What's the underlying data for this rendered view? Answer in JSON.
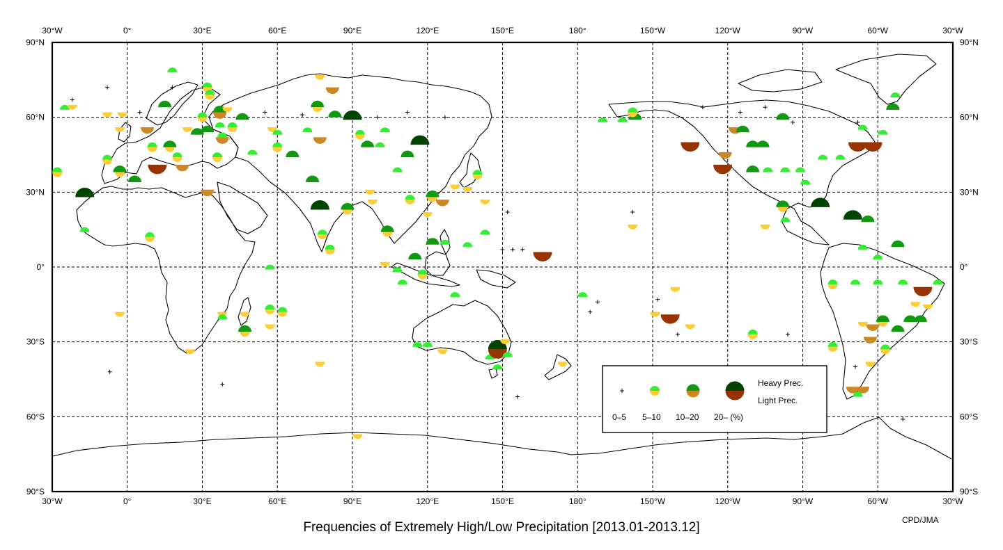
{
  "title": "Frequencies of Extremely High/Low Precipitation [2013.01-2013.12]",
  "credit": "CPD/JMA",
  "longitude_labels": [
    "30°W",
    "0°",
    "30°E",
    "60°E",
    "90°E",
    "120°E",
    "150°E",
    "180°",
    "150°W",
    "120°W",
    "90°W",
    "60°W",
    "30°W"
  ],
  "latitude_labels_left": [
    "90°N",
    "60°N",
    "30°N",
    "0°",
    "30°S",
    "60°S",
    "90°S"
  ],
  "latitude_labels_right": [
    "90°N",
    "60°N",
    "30°N",
    "0°",
    "30°S",
    "60°S",
    "90°S"
  ],
  "legend": {
    "heavy_label": "Heavy Prec.",
    "light_label": "Light Prec.",
    "classes": [
      "0–5",
      "5–10",
      "10–20",
      "20– (%)"
    ]
  },
  "colors": {
    "heavy": [
      "#000000",
      "#33ee33",
      "#119911",
      "#004400"
    ],
    "light": [
      "#000000",
      "#ffcc33",
      "#cc8822",
      "#993300"
    ],
    "land_outline": "#000000",
    "grid": "#000000"
  },
  "stations": [
    {
      "lon": -25,
      "lat": 63,
      "heavy": 1,
      "light": 0
    },
    {
      "lon": -22,
      "lat": 65,
      "heavy": 0,
      "light": 1
    },
    {
      "lon": -28,
      "lat": 38,
      "heavy": 1,
      "light": 1
    },
    {
      "lon": -17,
      "lat": 28,
      "heavy": 3,
      "light": 0
    },
    {
      "lon": -17,
      "lat": 14,
      "heavy": 1,
      "light": 0
    },
    {
      "lon": -3,
      "lat": 56,
      "heavy": 0,
      "light": 1
    },
    {
      "lon": -8,
      "lat": 62,
      "heavy": 0,
      "light": 1
    },
    {
      "lon": -2,
      "lat": 62,
      "heavy": 0,
      "light": 1
    },
    {
      "lon": -8,
      "lat": 43,
      "heavy": 1,
      "light": 1
    },
    {
      "lon": -3,
      "lat": 38,
      "heavy": 2,
      "light": 1
    },
    {
      "lon": 3,
      "lat": 34,
      "heavy": 2,
      "light": 0
    },
    {
      "lon": 8,
      "lat": 56,
      "heavy": 0,
      "light": 2
    },
    {
      "lon": 12,
      "lat": 41,
      "heavy": 0,
      "light": 3
    },
    {
      "lon": 10,
      "lat": 48,
      "heavy": 1,
      "light": 1
    },
    {
      "lon": 15,
      "lat": 64,
      "heavy": 2,
      "light": 0
    },
    {
      "lon": 17,
      "lat": 48,
      "heavy": 2,
      "light": 1
    },
    {
      "lon": 20,
      "lat": 44,
      "heavy": 1,
      "light": 1
    },
    {
      "lon": 22,
      "lat": 41,
      "heavy": 0,
      "light": 2
    },
    {
      "lon": 24,
      "lat": 56,
      "heavy": 0,
      "light": 1
    },
    {
      "lon": 28,
      "lat": 53,
      "heavy": 2,
      "light": 0
    },
    {
      "lon": 30,
      "lat": 60,
      "heavy": 1,
      "light": 1
    },
    {
      "lon": 32,
      "lat": 72,
      "heavy": 1,
      "light": 1
    },
    {
      "lon": 32,
      "lat": 54,
      "heavy": 2,
      "light": 0
    },
    {
      "lon": 37,
      "lat": 62,
      "heavy": 2,
      "light": 2
    },
    {
      "lon": 37,
      "lat": 56,
      "heavy": 1,
      "light": 0
    },
    {
      "lon": 38,
      "lat": 52,
      "heavy": 1,
      "light": 2
    },
    {
      "lon": 40,
      "lat": 64,
      "heavy": 0,
      "light": 1
    },
    {
      "lon": 32,
      "lat": 31,
      "heavy": 0,
      "light": 2
    },
    {
      "lon": 36,
      "lat": 44,
      "heavy": 1,
      "light": 1
    },
    {
      "lon": 33,
      "lat": 69,
      "heavy": 1,
      "light": 1
    },
    {
      "lon": 42,
      "lat": 56,
      "heavy": 1,
      "light": 1
    },
    {
      "lon": 46,
      "lat": 59,
      "heavy": 2,
      "light": 0
    },
    {
      "lon": 50,
      "lat": 45,
      "heavy": 1,
      "light": 0
    },
    {
      "lon": 58,
      "lat": 56,
      "heavy": 0,
      "light": 1
    },
    {
      "lon": 60,
      "lat": 53,
      "heavy": 1,
      "light": 0
    },
    {
      "lon": 60,
      "lat": 48,
      "heavy": 1,
      "light": 1
    },
    {
      "lon": 66,
      "lat": 44,
      "heavy": 2,
      "light": 0
    },
    {
      "lon": 72,
      "lat": 54,
      "heavy": 1,
      "light": 0
    },
    {
      "lon": 74,
      "lat": 34,
      "heavy": 2,
      "light": 0
    },
    {
      "lon": 77,
      "lat": 23,
      "heavy": 3,
      "light": 0
    },
    {
      "lon": 76,
      "lat": 64,
      "heavy": 2,
      "light": 1
    },
    {
      "lon": 77,
      "lat": 77,
      "heavy": 0,
      "light": 1
    },
    {
      "lon": 82,
      "lat": 72,
      "heavy": 0,
      "light": 2
    },
    {
      "lon": 77,
      "lat": 52,
      "heavy": 0,
      "light": 2
    },
    {
      "lon": 83,
      "lat": 60,
      "heavy": 2,
      "light": 0
    },
    {
      "lon": 88,
      "lat": 23,
      "heavy": 2,
      "light": 1
    },
    {
      "lon": 90,
      "lat": 59,
      "heavy": 3,
      "light": 0
    },
    {
      "lon": 93,
      "lat": 53,
      "heavy": 1,
      "light": 1
    },
    {
      "lon": 96,
      "lat": 48,
      "heavy": 2,
      "light": 0
    },
    {
      "lon": 101,
      "lat": 48,
      "heavy": 1,
      "light": 0
    },
    {
      "lon": 103,
      "lat": 54,
      "heavy": 1,
      "light": 0
    },
    {
      "lon": 108,
      "lat": 38,
      "heavy": 1,
      "light": 0
    },
    {
      "lon": 112,
      "lat": 44,
      "heavy": 2,
      "light": 0
    },
    {
      "lon": 117,
      "lat": 49,
      "heavy": 3,
      "light": 0
    },
    {
      "lon": 120,
      "lat": 22,
      "heavy": 0,
      "light": 1
    },
    {
      "lon": 122,
      "lat": 28,
      "heavy": 2,
      "light": 1
    },
    {
      "lon": 126,
      "lat": 27,
      "heavy": 0,
      "light": 2
    },
    {
      "lon": 131,
      "lat": 33,
      "heavy": 0,
      "light": 1
    },
    {
      "lon": 136,
      "lat": 32,
      "heavy": 0,
      "light": 1
    },
    {
      "lon": 140,
      "lat": 37,
      "heavy": 1,
      "light": 1
    },
    {
      "lon": 143,
      "lat": 27,
      "heavy": 0,
      "light": 1
    },
    {
      "lon": 143,
      "lat": 13,
      "heavy": 1,
      "light": 0
    },
    {
      "lon": 136,
      "lat": 8,
      "heavy": 1,
      "light": 0
    },
    {
      "lon": 122,
      "lat": 9,
      "heavy": 2,
      "light": 0
    },
    {
      "lon": 127,
      "lat": 9,
      "heavy": 1,
      "light": 0
    },
    {
      "lon": 118,
      "lat": -3,
      "heavy": 1,
      "light": 1
    },
    {
      "lon": 104,
      "lat": 14,
      "heavy": 2,
      "light": 1
    },
    {
      "lon": 103,
      "lat": 2,
      "heavy": 0,
      "light": 1
    },
    {
      "lon": 108,
      "lat": -2,
      "heavy": 1,
      "light": 0
    },
    {
      "lon": 110,
      "lat": -7,
      "heavy": 1,
      "light": 0
    },
    {
      "lon": 115,
      "lat": 3,
      "heavy": 2,
      "light": 0
    },
    {
      "lon": 98,
      "lat": 27,
      "heavy": 0,
      "light": 1
    },
    {
      "lon": 113,
      "lat": 27,
      "heavy": 1,
      "light": 1
    },
    {
      "lon": 78,
      "lat": 13,
      "heavy": 1,
      "light": 1
    },
    {
      "lon": 81,
      "lat": 7,
      "heavy": 1,
      "light": 1
    },
    {
      "lon": 97,
      "lat": 31,
      "heavy": 0,
      "light": 1
    },
    {
      "lon": 116,
      "lat": -32,
      "heavy": 1,
      "light": 0
    },
    {
      "lon": 120,
      "lat": -32,
      "heavy": 1,
      "light": 0
    },
    {
      "lon": 126,
      "lat": -33,
      "heavy": 0,
      "light": 1
    },
    {
      "lon": 145,
      "lat": -37,
      "heavy": 1,
      "light": 0
    },
    {
      "lon": 148,
      "lat": -33,
      "heavy": 3,
      "light": 3
    },
    {
      "lon": 151,
      "lat": -29,
      "heavy": 0,
      "light": 1
    },
    {
      "lon": 152,
      "lat": -36,
      "heavy": 1,
      "light": 0
    },
    {
      "lon": 148,
      "lat": -41,
      "heavy": 1,
      "light": 0
    },
    {
      "lon": 131,
      "lat": -12,
      "heavy": 1,
      "light": 0
    },
    {
      "lon": 166,
      "lat": 6,
      "heavy": 0,
      "light": 3
    },
    {
      "lon": 174,
      "lat": -38,
      "heavy": 0,
      "light": 1
    },
    {
      "lon": -178,
      "lat": -12,
      "heavy": 1,
      "light": 0
    },
    {
      "lon": -158,
      "lat": 17,
      "heavy": 0,
      "light": 1
    },
    {
      "lon": -157,
      "lat": 59,
      "heavy": 2,
      "light": 0
    },
    {
      "lon": -162,
      "lat": 58,
      "heavy": 1,
      "light": 0
    },
    {
      "lon": -170,
      "lat": 58,
      "heavy": 1,
      "light": 0
    },
    {
      "lon": -158,
      "lat": 62,
      "heavy": 1,
      "light": 1
    },
    {
      "lon": -141,
      "lat": -8,
      "heavy": 0,
      "light": 1
    },
    {
      "lon": -149,
      "lat": -18,
      "heavy": 0,
      "light": 1
    },
    {
      "lon": -143,
      "lat": -19,
      "heavy": 0,
      "light": 3
    },
    {
      "lon": -135,
      "lat": -23,
      "heavy": 0,
      "light": 1
    },
    {
      "lon": -135,
      "lat": 50,
      "heavy": 0,
      "light": 3
    },
    {
      "lon": -122,
      "lat": 41,
      "heavy": 0,
      "light": 3
    },
    {
      "lon": -121,
      "lat": 46,
      "heavy": 0,
      "light": 2
    },
    {
      "lon": -117,
      "lat": 56,
      "heavy": 0,
      "light": 2
    },
    {
      "lon": -114,
      "lat": 54,
      "heavy": 2,
      "light": 0
    },
    {
      "lon": -110,
      "lat": 48,
      "heavy": 2,
      "light": 0
    },
    {
      "lon": -106,
      "lat": 48,
      "heavy": 2,
      "light": 0
    },
    {
      "lon": -110,
      "lat": 38,
      "heavy": 2,
      "light": 0
    },
    {
      "lon": -104,
      "lat": 38,
      "heavy": 1,
      "light": 0
    },
    {
      "lon": -97,
      "lat": 38,
      "heavy": 1,
      "light": 0
    },
    {
      "lon": -91,
      "lat": 38,
      "heavy": 1,
      "light": 0
    },
    {
      "lon": -98,
      "lat": 59,
      "heavy": 2,
      "light": 0
    },
    {
      "lon": -105,
      "lat": 17,
      "heavy": 0,
      "light": 1
    },
    {
      "lon": -98,
      "lat": 24,
      "heavy": 2,
      "light": 1
    },
    {
      "lon": -97,
      "lat": 18,
      "heavy": 1,
      "light": 0
    },
    {
      "lon": -83,
      "lat": 24,
      "heavy": 3,
      "light": 0
    },
    {
      "lon": -89,
      "lat": 33,
      "heavy": 1,
      "light": 0
    },
    {
      "lon": -82,
      "lat": 43,
      "heavy": 1,
      "light": 0
    },
    {
      "lon": -75,
      "lat": 43,
      "heavy": 1,
      "light": 0
    },
    {
      "lon": -68,
      "lat": 50,
      "heavy": 0,
      "light": 3
    },
    {
      "lon": -62,
      "lat": 50,
      "heavy": 0,
      "light": 3
    },
    {
      "lon": -66,
      "lat": 55,
      "heavy": 1,
      "light": 0
    },
    {
      "lon": -58,
      "lat": 53,
      "heavy": 1,
      "light": 0
    },
    {
      "lon": -54,
      "lat": 63,
      "heavy": 2,
      "light": 0
    },
    {
      "lon": -53,
      "lat": 68,
      "heavy": 1,
      "light": 0
    },
    {
      "lon": -70,
      "lat": 19,
      "heavy": 3,
      "light": 0
    },
    {
      "lon": -64,
      "lat": 18,
      "heavy": 2,
      "light": 0
    },
    {
      "lon": -52,
      "lat": 8,
      "heavy": 2,
      "light": 0
    },
    {
      "lon": -66,
      "lat": 7,
      "heavy": 1,
      "light": 0
    },
    {
      "lon": -60,
      "lat": 3,
      "heavy": 1,
      "light": 0
    },
    {
      "lon": -78,
      "lat": -7,
      "heavy": 1,
      "light": 1
    },
    {
      "lon": -69,
      "lat": -7,
      "heavy": 1,
      "light": 0
    },
    {
      "lon": -60,
      "lat": -7,
      "heavy": 1,
      "light": 0
    },
    {
      "lon": -50,
      "lat": -7,
      "heavy": 1,
      "light": 0
    },
    {
      "lon": -42,
      "lat": -8,
      "heavy": 0,
      "light": 3
    },
    {
      "lon": -36,
      "lat": -7,
      "heavy": 1,
      "light": 0
    },
    {
      "lon": -45,
      "lat": -14,
      "heavy": 0,
      "light": 1
    },
    {
      "lon": -40,
      "lat": -15,
      "heavy": 0,
      "light": 1
    },
    {
      "lon": -47,
      "lat": -22,
      "heavy": 2,
      "light": 0
    },
    {
      "lon": -43,
      "lat": -22,
      "heavy": 2,
      "light": 0
    },
    {
      "lon": -52,
      "lat": -26,
      "heavy": 2,
      "light": 0
    },
    {
      "lon": -58,
      "lat": -22,
      "heavy": 2,
      "light": 1
    },
    {
      "lon": -62,
      "lat": -23,
      "heavy": 0,
      "light": 2
    },
    {
      "lon": -63,
      "lat": -28,
      "heavy": 0,
      "light": 2
    },
    {
      "lon": -57,
      "lat": -33,
      "heavy": 1,
      "light": 1
    },
    {
      "lon": -63,
      "lat": -38,
      "heavy": 0,
      "light": 1
    },
    {
      "lon": -70,
      "lat": -48,
      "heavy": 0,
      "light": 2
    },
    {
      "lon": -66,
      "lat": -48,
      "heavy": 0,
      "light": 2
    },
    {
      "lon": -68,
      "lat": -52,
      "heavy": 1,
      "light": 0
    },
    {
      "lon": -78,
      "lat": -32,
      "heavy": 1,
      "light": 1
    },
    {
      "lon": -110,
      "lat": -27,
      "heavy": 1,
      "light": 1
    },
    {
      "lon": -66,
      "lat": -22,
      "heavy": 0,
      "light": 1
    },
    {
      "lon": -96,
      "lat": -27,
      "heavy": 0,
      "light": 0
    },
    {
      "lon": -69,
      "lat": -40,
      "heavy": 0,
      "light": 0
    },
    {
      "lon": -50,
      "lat": -61,
      "heavy": 0,
      "light": 0
    },
    {
      "lon": -3,
      "lat": -18,
      "heavy": 0,
      "light": 1
    },
    {
      "lon": 9,
      "lat": 12,
      "heavy": 1,
      "light": 1
    },
    {
      "lon": 18,
      "lat": 78,
      "heavy": 1,
      "light": 0
    },
    {
      "lon": 25,
      "lat": -33,
      "heavy": 0,
      "light": 1
    },
    {
      "lon": 38,
      "lat": -18,
      "heavy": 0,
      "light": 1
    },
    {
      "lon": 38,
      "lat": -21,
      "heavy": 1,
      "light": 0
    },
    {
      "lon": 47,
      "lat": -26,
      "heavy": 2,
      "light": 1
    },
    {
      "lon": 47,
      "lat": -18,
      "heavy": 0,
      "light": 1
    },
    {
      "lon": 57,
      "lat": -1,
      "heavy": 1,
      "light": 0
    },
    {
      "lon": 57,
      "lat": -17,
      "heavy": 1,
      "light": 1
    },
    {
      "lon": 57,
      "lat": -23,
      "heavy": 0,
      "light": 1
    },
    {
      "lon": 62,
      "lat": -18,
      "heavy": 1,
      "light": 1
    },
    {
      "lon": 77,
      "lat": -38,
      "heavy": 0,
      "light": 1
    },
    {
      "lon": 92,
      "lat": -67,
      "heavy": 0,
      "light": 1
    },
    {
      "lon": -7,
      "lat": -42,
      "heavy": 0,
      "light": 0
    },
    {
      "lon": 38,
      "lat": -47,
      "heavy": 0,
      "light": 0
    },
    {
      "lon": 156,
      "lat": -52,
      "heavy": 0,
      "light": 0
    },
    {
      "lon": 158,
      "lat": 7,
      "heavy": 0,
      "light": 0
    },
    {
      "lon": 154,
      "lat": 7,
      "heavy": 0,
      "light": 0
    },
    {
      "lon": 150,
      "lat": 7,
      "heavy": 0,
      "light": 0
    },
    {
      "lon": 152,
      "lat": 22,
      "heavy": 0,
      "light": 0
    },
    {
      "lon": -158,
      "lat": 22,
      "heavy": 0,
      "light": 0
    },
    {
      "lon": -148,
      "lat": -13,
      "heavy": 0,
      "light": 0
    },
    {
      "lon": -140,
      "lat": -27,
      "heavy": 0,
      "light": 0
    },
    {
      "lon": -175,
      "lat": -18,
      "heavy": 0,
      "light": 0
    },
    {
      "lon": -172,
      "lat": -14,
      "heavy": 0,
      "light": 0
    },
    {
      "lon": -8,
      "lat": 72,
      "heavy": 0,
      "light": 0
    },
    {
      "lon": -22,
      "lat": 67,
      "heavy": 0,
      "light": 0
    },
    {
      "lon": 5,
      "lat": 62,
      "heavy": 0,
      "light": 0
    },
    {
      "lon": 18,
      "lat": 72,
      "heavy": 0,
      "light": 0
    },
    {
      "lon": 55,
      "lat": 62,
      "heavy": 0,
      "light": 0
    },
    {
      "lon": 70,
      "lat": 61,
      "heavy": 0,
      "light": 0
    },
    {
      "lon": 100,
      "lat": 60,
      "heavy": 0,
      "light": 0
    },
    {
      "lon": 112,
      "lat": 62,
      "heavy": 0,
      "light": 0
    },
    {
      "lon": 127,
      "lat": 60,
      "heavy": 0,
      "light": 0
    },
    {
      "lon": -68,
      "lat": 58,
      "heavy": 0,
      "light": 0
    },
    {
      "lon": -94,
      "lat": 58,
      "heavy": 0,
      "light": 0
    },
    {
      "lon": -105,
      "lat": 64,
      "heavy": 0,
      "light": 0
    },
    {
      "lon": -115,
      "lat": 62,
      "heavy": 0,
      "light": 0
    },
    {
      "lon": -130,
      "lat": 64,
      "heavy": 0,
      "light": 0
    }
  ]
}
